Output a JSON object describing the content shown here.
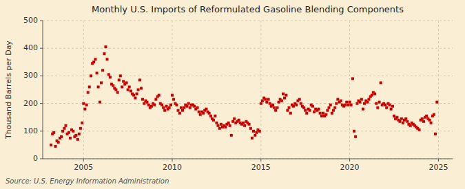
{
  "chart_data": {
    "type": "scatter",
    "title": "Monthly U.S. Imports of Reformulated Gasoline Blending Components",
    "ylabel": "Thousand Barrels per Day",
    "annotations": [
      "Source: U.S. Energy Information Administration"
    ],
    "color": "#cc0000",
    "marker": "square",
    "grid": true,
    "xlim": [
      2002.7,
      2025.8
    ],
    "ylim": [
      0,
      500
    ],
    "xticks": [
      2005,
      2010,
      2015,
      2020,
      2025
    ],
    "yticks": [
      0,
      100,
      200,
      300,
      400,
      500
    ],
    "x": [
      2003.17,
      2003.25,
      2003.33,
      2003.42,
      2003.5,
      2003.58,
      2003.67,
      2003.75,
      2003.83,
      2003.92,
      2004.0,
      2004.08,
      2004.17,
      2004.25,
      2004.33,
      2004.42,
      2004.5,
      2004.58,
      2004.67,
      2004.75,
      2004.83,
      2004.92,
      2005.0,
      2005.08,
      2005.17,
      2005.25,
      2005.33,
      2005.42,
      2005.5,
      2005.58,
      2005.67,
      2005.75,
      2005.83,
      2005.92,
      2006.0,
      2006.08,
      2006.17,
      2006.25,
      2006.33,
      2006.42,
      2006.5,
      2006.58,
      2006.67,
      2006.75,
      2006.83,
      2006.92,
      2007.0,
      2007.08,
      2007.17,
      2007.25,
      2007.33,
      2007.42,
      2007.5,
      2007.58,
      2007.67,
      2007.75,
      2007.83,
      2007.92,
      2008.0,
      2008.08,
      2008.17,
      2008.25,
      2008.33,
      2008.42,
      2008.5,
      2008.58,
      2008.67,
      2008.75,
      2008.83,
      2008.92,
      2009.0,
      2009.08,
      2009.17,
      2009.25,
      2009.33,
      2009.42,
      2009.5,
      2009.58,
      2009.67,
      2009.75,
      2009.83,
      2009.92,
      2010.0,
      2010.08,
      2010.17,
      2010.25,
      2010.33,
      2010.42,
      2010.5,
      2010.58,
      2010.67,
      2010.75,
      2010.83,
      2010.92,
      2011.0,
      2011.08,
      2011.17,
      2011.25,
      2011.33,
      2011.42,
      2011.5,
      2011.58,
      2011.67,
      2011.75,
      2011.83,
      2011.92,
      2012.0,
      2012.08,
      2012.17,
      2012.25,
      2012.33,
      2012.42,
      2012.5,
      2012.58,
      2012.67,
      2012.75,
      2012.83,
      2012.92,
      2013.0,
      2013.08,
      2013.17,
      2013.25,
      2013.33,
      2013.42,
      2013.5,
      2013.58,
      2013.67,
      2013.75,
      2013.83,
      2013.92,
      2014.0,
      2014.08,
      2014.17,
      2014.25,
      2014.33,
      2014.42,
      2014.5,
      2014.58,
      2014.67,
      2014.75,
      2014.83,
      2014.92,
      2015.0,
      2015.08,
      2015.17,
      2015.25,
      2015.33,
      2015.42,
      2015.5,
      2015.58,
      2015.67,
      2015.75,
      2015.83,
      2015.92,
      2016.0,
      2016.08,
      2016.17,
      2016.25,
      2016.33,
      2016.42,
      2016.5,
      2016.58,
      2016.67,
      2016.75,
      2016.83,
      2016.92,
      2017.0,
      2017.08,
      2017.17,
      2017.25,
      2017.33,
      2017.42,
      2017.5,
      2017.58,
      2017.67,
      2017.75,
      2017.83,
      2017.92,
      2018.0,
      2018.08,
      2018.17,
      2018.25,
      2018.33,
      2018.42,
      2018.5,
      2018.58,
      2018.67,
      2018.75,
      2018.83,
      2018.92,
      2019.0,
      2019.08,
      2019.17,
      2019.25,
      2019.33,
      2019.42,
      2019.5,
      2019.58,
      2019.67,
      2019.75,
      2019.83,
      2019.92,
      2020.0,
      2020.08,
      2020.17,
      2020.25,
      2020.33,
      2020.42,
      2020.5,
      2020.58,
      2020.67,
      2020.75,
      2020.83,
      2020.92,
      2021.0,
      2021.08,
      2021.17,
      2021.25,
      2021.33,
      2021.42,
      2021.5,
      2021.58,
      2021.67,
      2021.75,
      2021.83,
      2021.92,
      2022.0,
      2022.08,
      2022.17,
      2022.25,
      2022.33,
      2022.42,
      2022.5,
      2022.58,
      2022.67,
      2022.75,
      2022.83,
      2022.92,
      2023.0,
      2023.08,
      2023.17,
      2023.25,
      2023.33,
      2023.42,
      2023.5,
      2023.58,
      2023.67,
      2023.75,
      2023.83,
      2023.92,
      2024.0,
      2024.08,
      2024.17,
      2024.25,
      2024.33,
      2024.42,
      2024.5,
      2024.58,
      2024.67,
      2024.75,
      2024.83,
      2024.92
    ],
    "values": [
      50,
      90,
      95,
      45,
      65,
      60,
      75,
      80,
      100,
      110,
      120,
      90,
      95,
      75,
      105,
      100,
      80,
      85,
      70,
      90,
      110,
      130,
      200,
      180,
      195,
      240,
      260,
      300,
      345,
      350,
      360,
      310,
      260,
      205,
      275,
      320,
      380,
      405,
      360,
      305,
      295,
      270,
      265,
      255,
      250,
      240,
      285,
      300,
      260,
      280,
      270,
      275,
      250,
      260,
      245,
      235,
      230,
      220,
      235,
      250,
      285,
      255,
      215,
      200,
      210,
      205,
      195,
      185,
      190,
      200,
      195,
      215,
      225,
      230,
      200,
      195,
      185,
      175,
      190,
      180,
      185,
      195,
      230,
      215,
      200,
      195,
      175,
      165,
      185,
      175,
      185,
      195,
      190,
      200,
      185,
      195,
      195,
      190,
      180,
      185,
      170,
      160,
      170,
      165,
      175,
      180,
      170,
      165,
      155,
      145,
      140,
      155,
      130,
      120,
      110,
      125,
      115,
      120,
      115,
      125,
      130,
      120,
      85,
      135,
      145,
      130,
      135,
      140,
      130,
      125,
      130,
      120,
      135,
      130,
      125,
      110,
      75,
      100,
      85,
      95,
      105,
      100,
      200,
      210,
      220,
      215,
      205,
      215,
      200,
      190,
      195,
      185,
      175,
      185,
      205,
      215,
      210,
      235,
      220,
      230,
      175,
      185,
      165,
      195,
      190,
      200,
      195,
      210,
      215,
      200,
      190,
      185,
      175,
      165,
      180,
      175,
      195,
      190,
      170,
      180,
      175,
      180,
      165,
      155,
      165,
      155,
      160,
      175,
      185,
      195,
      165,
      175,
      185,
      200,
      215,
      205,
      210,
      195,
      190,
      195,
      205,
      195,
      205,
      195,
      290,
      100,
      80,
      200,
      210,
      205,
      215,
      180,
      200,
      210,
      205,
      215,
      225,
      230,
      240,
      235,
      200,
      185,
      205,
      275,
      195,
      200,
      195,
      185,
      200,
      195,
      180,
      190,
      155,
      145,
      150,
      140,
      135,
      145,
      130,
      140,
      145,
      135,
      125,
      120,
      130,
      125,
      120,
      115,
      110,
      105,
      140,
      145,
      135,
      150,
      155,
      145,
      140,
      130,
      155,
      160,
      90,
      205
    ]
  }
}
